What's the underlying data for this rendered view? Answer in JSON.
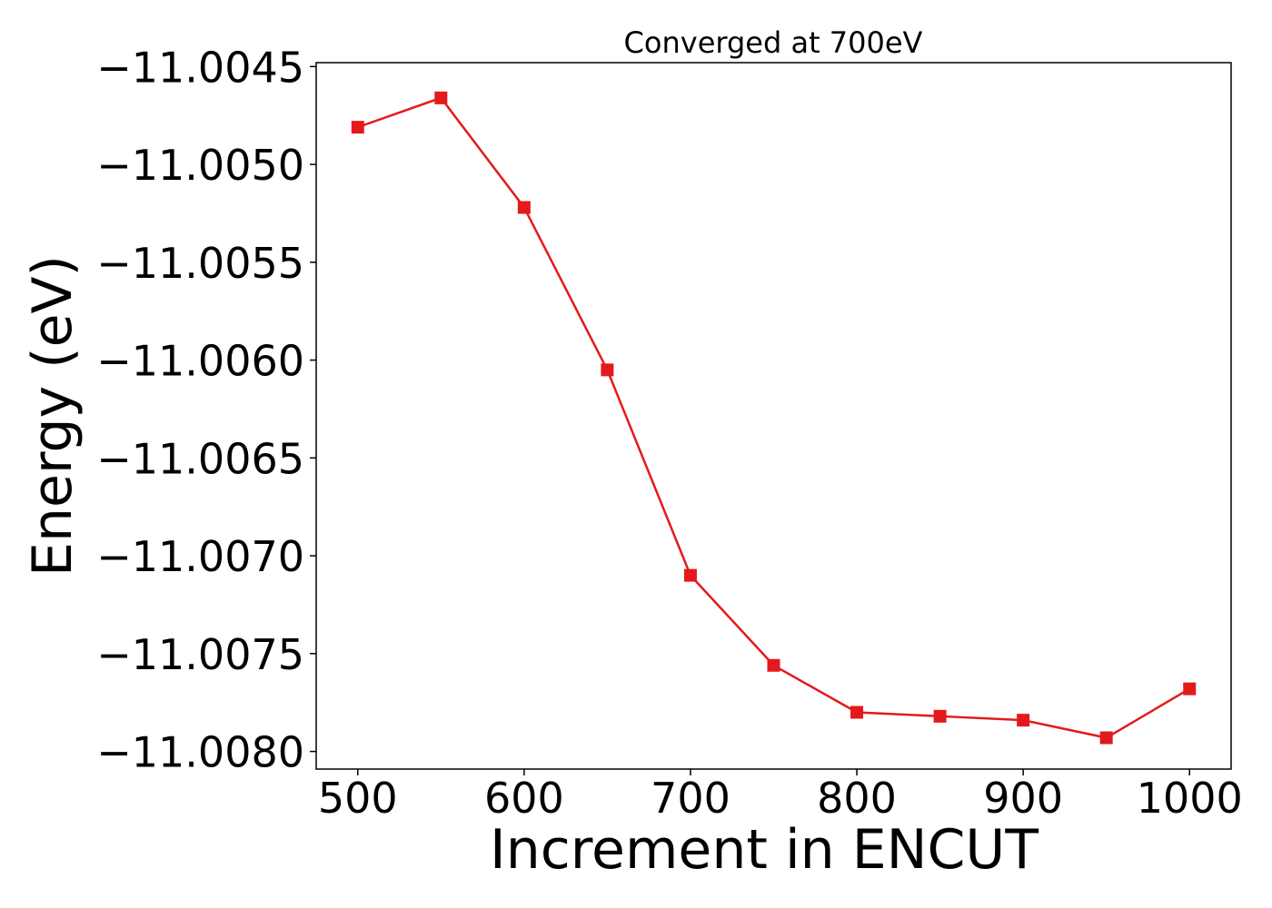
{
  "chart_data": {
    "type": "line",
    "title": "Converged at 700eV",
    "xlabel": "Increment in ENCUT",
    "ylabel": "Energy (eV)",
    "x": [
      500,
      550,
      600,
      650,
      700,
      750,
      800,
      850,
      900,
      950,
      1000
    ],
    "series": [
      {
        "values": [
          -11.00481,
          -11.00466,
          -11.00522,
          -11.00605,
          -11.0071,
          -11.00756,
          -11.0078,
          -11.00782,
          -11.00784,
          -11.00793,
          -11.00768
        ],
        "color": "#e31a1c",
        "marker": "square"
      }
    ],
    "xlim": [
      475,
      1025
    ],
    "ylim": [
      -11.00809,
      -11.00448
    ],
    "xticks": [
      500,
      600,
      700,
      800,
      900,
      1000
    ],
    "xtick_labels": [
      "500",
      "600",
      "700",
      "800",
      "900",
      "1000"
    ],
    "yticks": [
      -11.0045,
      -11.005,
      -11.0055,
      -11.006,
      -11.0065,
      -11.007,
      -11.0075,
      -11.008
    ],
    "ytick_labels": [
      "−11.0045",
      "−11.0050",
      "−11.0055",
      "−11.0060",
      "−11.0065",
      "−11.0070",
      "−11.0075",
      "−11.0080"
    ],
    "grid": false,
    "legend": false
  }
}
